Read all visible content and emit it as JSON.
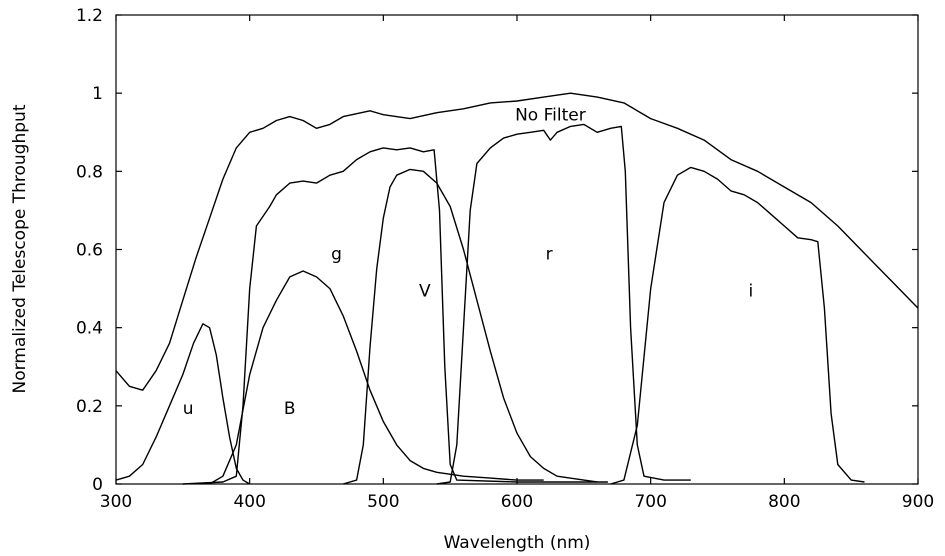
{
  "chart_data": {
    "type": "line",
    "title": "",
    "xlabel": "Wavelength (nm)",
    "ylabel": "Normalized Telescope Throughput",
    "xlim": [
      300,
      900
    ],
    "ylim": [
      0,
      1.2
    ],
    "grid": false,
    "x_ticks": [
      300,
      400,
      500,
      600,
      700,
      800,
      900
    ],
    "x_tick_labels": [
      "300",
      "400",
      "500",
      "600",
      "700",
      "800",
      "900"
    ],
    "y_ticks": [
      0,
      0.2,
      0.4,
      0.6,
      0.8,
      1,
      1.2
    ],
    "y_tick_labels": [
      "0",
      "0.2",
      "0.4",
      "0.6",
      "0.8",
      "1",
      "1.2"
    ],
    "series": [
      {
        "name": "No Filter",
        "label_x": 625,
        "label_y": 0.945,
        "points": [
          [
            300,
            0.29
          ],
          [
            310,
            0.25
          ],
          [
            320,
            0.24
          ],
          [
            330,
            0.29
          ],
          [
            340,
            0.36
          ],
          [
            350,
            0.47
          ],
          [
            360,
            0.58
          ],
          [
            370,
            0.68
          ],
          [
            380,
            0.78
          ],
          [
            390,
            0.86
          ],
          [
            400,
            0.9
          ],
          [
            410,
            0.91
          ],
          [
            420,
            0.93
          ],
          [
            430,
            0.94
          ],
          [
            440,
            0.93
          ],
          [
            450,
            0.91
          ],
          [
            460,
            0.92
          ],
          [
            470,
            0.94
          ],
          [
            490,
            0.955
          ],
          [
            500,
            0.945
          ],
          [
            520,
            0.935
          ],
          [
            540,
            0.95
          ],
          [
            560,
            0.96
          ],
          [
            580,
            0.975
          ],
          [
            600,
            0.98
          ],
          [
            620,
            0.99
          ],
          [
            640,
            1.0
          ],
          [
            660,
            0.99
          ],
          [
            680,
            0.975
          ],
          [
            700,
            0.935
          ],
          [
            720,
            0.91
          ],
          [
            740,
            0.88
          ],
          [
            760,
            0.83
          ],
          [
            780,
            0.8
          ],
          [
            800,
            0.76
          ],
          [
            820,
            0.72
          ],
          [
            840,
            0.66
          ],
          [
            860,
            0.59
          ],
          [
            880,
            0.52
          ],
          [
            900,
            0.45
          ]
        ]
      },
      {
        "name": "u",
        "label_x": 354,
        "label_y": 0.195,
        "points": [
          [
            300,
            0.01
          ],
          [
            310,
            0.02
          ],
          [
            320,
            0.05
          ],
          [
            330,
            0.12
          ],
          [
            340,
            0.2
          ],
          [
            350,
            0.28
          ],
          [
            358,
            0.36
          ],
          [
            365,
            0.41
          ],
          [
            370,
            0.4
          ],
          [
            375,
            0.33
          ],
          [
            380,
            0.22
          ],
          [
            385,
            0.12
          ],
          [
            390,
            0.04
          ],
          [
            395,
            0.01
          ],
          [
            400,
            0.0
          ]
        ]
      },
      {
        "name": "B",
        "label_x": 430,
        "label_y": 0.195,
        "points": [
          [
            370,
            0.0
          ],
          [
            380,
            0.02
          ],
          [
            390,
            0.1
          ],
          [
            400,
            0.28
          ],
          [
            410,
            0.4
          ],
          [
            420,
            0.47
          ],
          [
            430,
            0.53
          ],
          [
            440,
            0.545
          ],
          [
            450,
            0.53
          ],
          [
            460,
            0.5
          ],
          [
            470,
            0.43
          ],
          [
            480,
            0.34
          ],
          [
            490,
            0.24
          ],
          [
            500,
            0.16
          ],
          [
            510,
            0.1
          ],
          [
            520,
            0.06
          ],
          [
            530,
            0.04
          ],
          [
            540,
            0.03
          ],
          [
            560,
            0.02
          ],
          [
            580,
            0.015
          ],
          [
            600,
            0.01
          ],
          [
            620,
            0.01
          ]
        ]
      },
      {
        "name": "g",
        "label_x": 465,
        "label_y": 0.59,
        "points": [
          [
            350,
            0.0
          ],
          [
            380,
            0.005
          ],
          [
            390,
            0.02
          ],
          [
            395,
            0.2
          ],
          [
            400,
            0.5
          ],
          [
            405,
            0.66
          ],
          [
            415,
            0.71
          ],
          [
            420,
            0.74
          ],
          [
            430,
            0.77
          ],
          [
            440,
            0.775
          ],
          [
            450,
            0.77
          ],
          [
            460,
            0.79
          ],
          [
            470,
            0.8
          ],
          [
            480,
            0.83
          ],
          [
            490,
            0.85
          ],
          [
            500,
            0.86
          ],
          [
            510,
            0.855
          ],
          [
            520,
            0.86
          ],
          [
            530,
            0.85
          ],
          [
            538,
            0.855
          ],
          [
            542,
            0.7
          ],
          [
            546,
            0.3
          ],
          [
            550,
            0.05
          ],
          [
            555,
            0.01
          ],
          [
            600,
            0.005
          ],
          [
            668,
            0.005
          ]
        ]
      },
      {
        "name": "V",
        "label_x": 531,
        "label_y": 0.495,
        "points": [
          [
            470,
            0.0
          ],
          [
            480,
            0.01
          ],
          [
            485,
            0.1
          ],
          [
            490,
            0.35
          ],
          [
            495,
            0.55
          ],
          [
            500,
            0.68
          ],
          [
            505,
            0.76
          ],
          [
            510,
            0.79
          ],
          [
            520,
            0.805
          ],
          [
            530,
            0.8
          ],
          [
            540,
            0.77
          ],
          [
            550,
            0.71
          ],
          [
            560,
            0.6
          ],
          [
            570,
            0.47
          ],
          [
            580,
            0.34
          ],
          [
            590,
            0.22
          ],
          [
            600,
            0.13
          ],
          [
            610,
            0.07
          ],
          [
            620,
            0.04
          ],
          [
            630,
            0.02
          ],
          [
            650,
            0.01
          ],
          [
            660,
            0.005
          ]
        ]
      },
      {
        "name": "r",
        "label_x": 624,
        "label_y": 0.59,
        "points": [
          [
            540,
            0.0
          ],
          [
            550,
            0.005
          ],
          [
            555,
            0.1
          ],
          [
            560,
            0.4
          ],
          [
            565,
            0.7
          ],
          [
            570,
            0.82
          ],
          [
            580,
            0.86
          ],
          [
            590,
            0.885
          ],
          [
            600,
            0.895
          ],
          [
            610,
            0.9
          ],
          [
            620,
            0.905
          ],
          [
            625,
            0.88
          ],
          [
            630,
            0.9
          ],
          [
            640,
            0.915
          ],
          [
            650,
            0.92
          ],
          [
            660,
            0.9
          ],
          [
            670,
            0.91
          ],
          [
            678,
            0.915
          ],
          [
            681,
            0.8
          ],
          [
            685,
            0.4
          ],
          [
            690,
            0.1
          ],
          [
            695,
            0.02
          ],
          [
            710,
            0.01
          ],
          [
            730,
            0.01
          ]
        ]
      },
      {
        "name": "i",
        "label_x": 775,
        "label_y": 0.495,
        "points": [
          [
            670,
            0.0
          ],
          [
            680,
            0.01
          ],
          [
            690,
            0.15
          ],
          [
            700,
            0.5
          ],
          [
            710,
            0.72
          ],
          [
            720,
            0.79
          ],
          [
            730,
            0.81
          ],
          [
            740,
            0.8
          ],
          [
            750,
            0.78
          ],
          [
            760,
            0.75
          ],
          [
            770,
            0.74
          ],
          [
            780,
            0.72
          ],
          [
            790,
            0.69
          ],
          [
            800,
            0.66
          ],
          [
            810,
            0.63
          ],
          [
            820,
            0.625
          ],
          [
            825,
            0.62
          ],
          [
            830,
            0.45
          ],
          [
            835,
            0.18
          ],
          [
            840,
            0.05
          ],
          [
            850,
            0.01
          ],
          [
            860,
            0.005
          ]
        ]
      }
    ]
  }
}
